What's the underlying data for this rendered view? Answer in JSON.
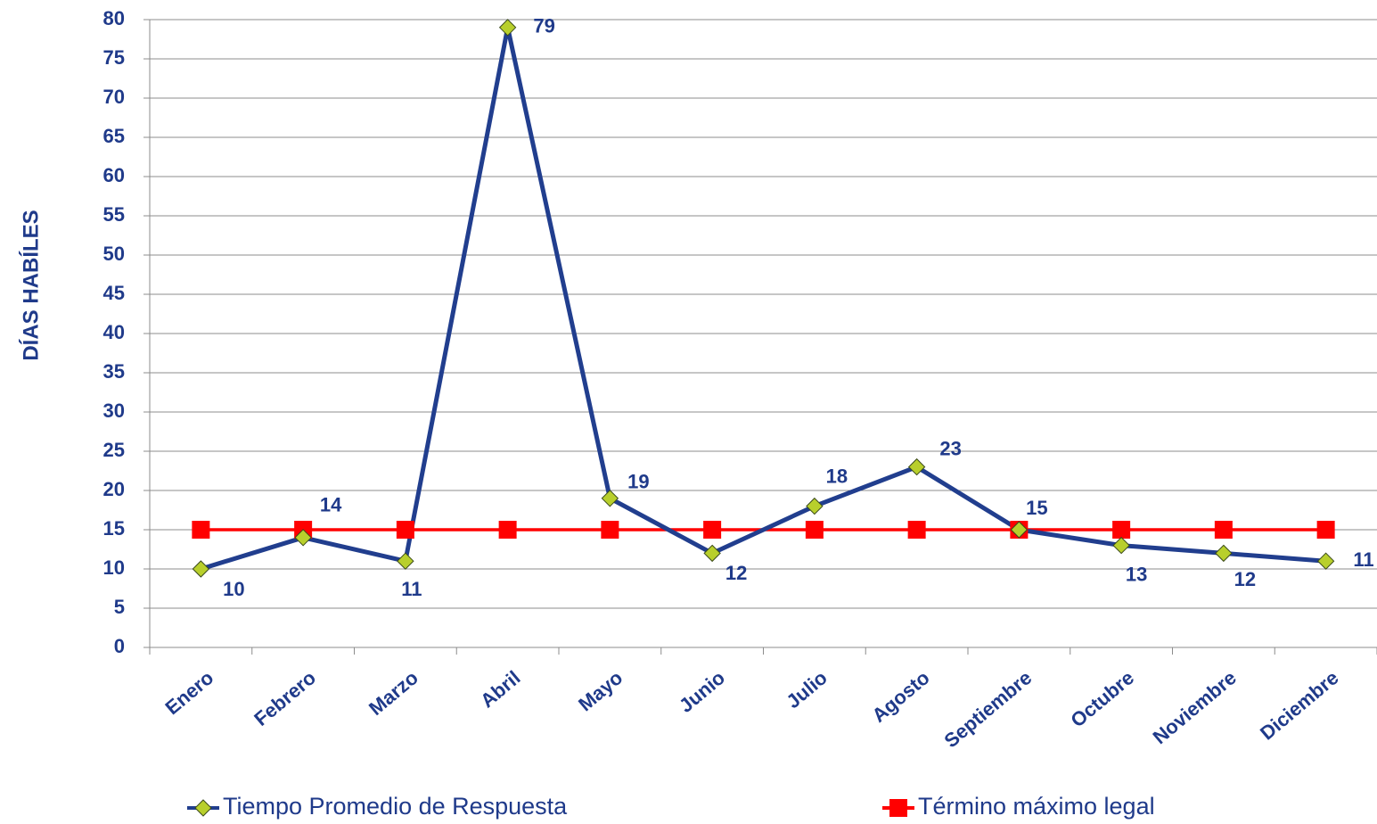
{
  "chart_data": {
    "type": "line",
    "y_label": "DÍAS HABÍLES",
    "categories": [
      "Enero",
      "Febrero",
      "Marzo",
      "Abril",
      "Mayo",
      "Junio",
      "Julio",
      "Agosto",
      "Septiembre",
      "Octubre",
      "Noviembre",
      "Diciembre"
    ],
    "series": [
      {
        "name": "Tiempo Promedio de Respuesta",
        "color": "#213e8e",
        "marker_color": "#b8cf2c",
        "marker": "diamond",
        "values": [
          10,
          14,
          11,
          79,
          19,
          12,
          18,
          23,
          15,
          13,
          12,
          11
        ],
        "data_labels": true
      },
      {
        "name": "Término máximo legal",
        "color": "#ff0000",
        "marker_color": "#ff0000",
        "marker": "square",
        "values": [
          15,
          15,
          15,
          15,
          15,
          15,
          15,
          15,
          15,
          15,
          15,
          15
        ],
        "data_labels": false
      }
    ],
    "ylim": [
      0,
      80
    ],
    "yticks": [
      0,
      5,
      10,
      15,
      20,
      25,
      30,
      35,
      40,
      45,
      50,
      55,
      60,
      65,
      70,
      75,
      80
    ],
    "grid": true
  }
}
